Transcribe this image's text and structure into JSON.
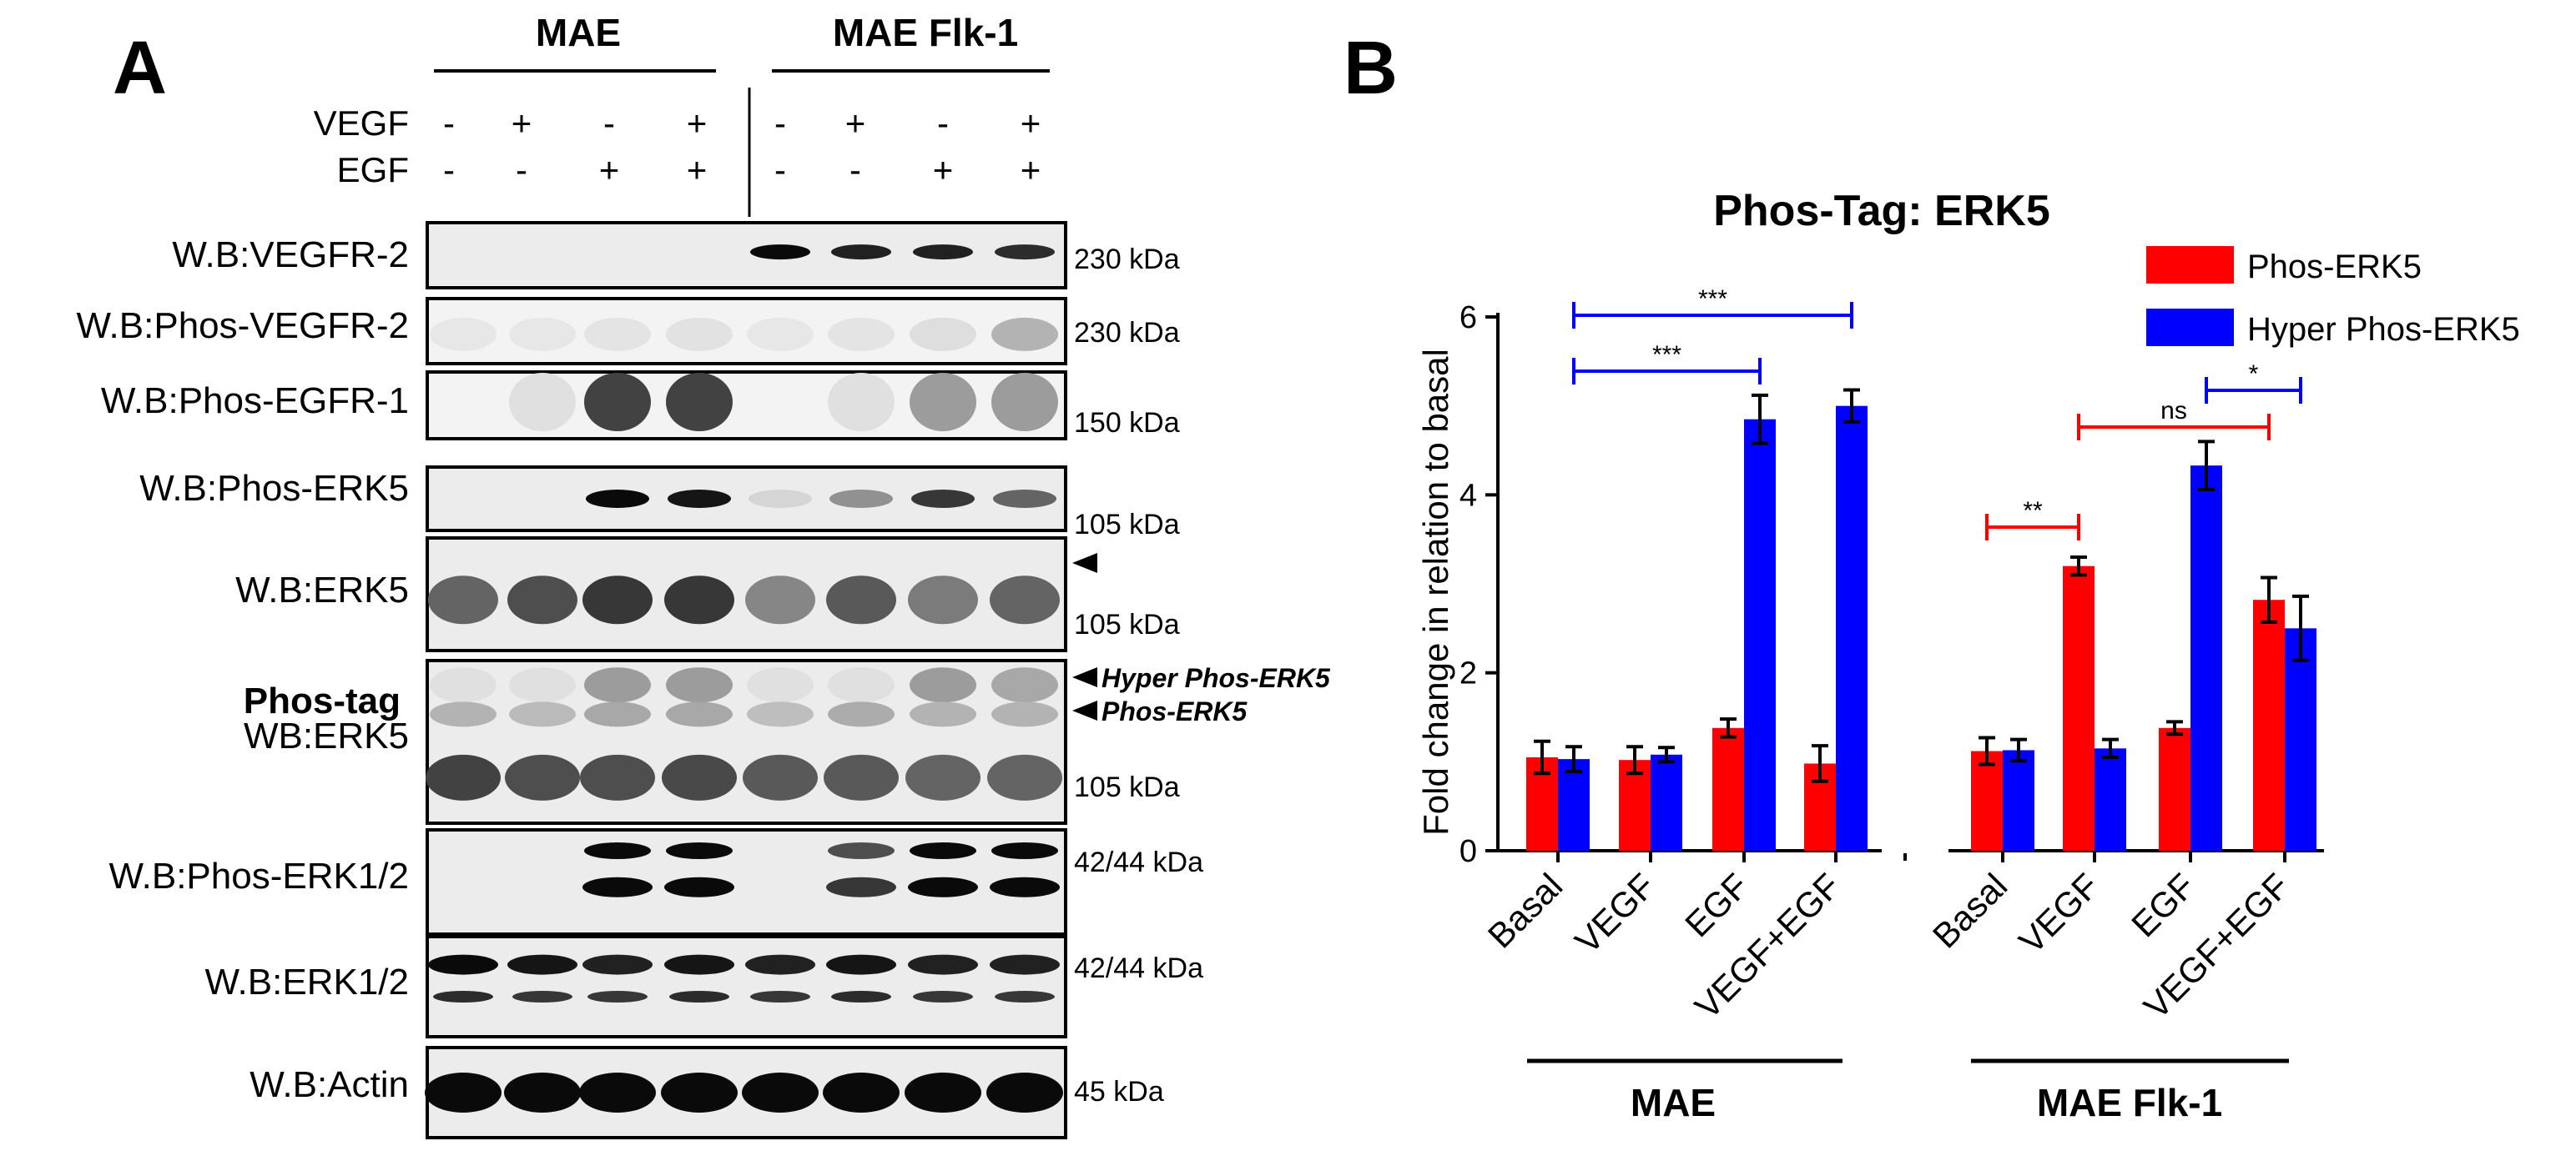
{
  "panel_a": {
    "label": "A",
    "groups": [
      "MAE",
      "MAE Flk-1"
    ],
    "treatments": [
      {
        "label": "VEGF",
        "signs": [
          "-",
          "+",
          "-",
          "+",
          "-",
          "+",
          "-",
          "+"
        ]
      },
      {
        "label": "EGF",
        "signs": [
          "-",
          "-",
          "+",
          "+",
          "-",
          "-",
          "+",
          "+"
        ]
      }
    ],
    "blots": [
      {
        "label": "W.B:VEGFR-2",
        "marker": "230 kDa"
      },
      {
        "label": "W.B:Phos-VEGFR-2",
        "marker": "230 kDa"
      },
      {
        "label": "W.B:Phos-EGFR-1",
        "marker": "150 kDa"
      },
      {
        "label": "W.B:Phos-ERK5",
        "marker": "105 kDa"
      },
      {
        "label": "W.B:ERK5",
        "marker": "105 kDa"
      },
      {
        "label_bold": "Phos-tag",
        "label": "WB:ERK5",
        "marker": "105 kDa"
      },
      {
        "label": "W.B:Phos-ERK1/2",
        "marker": "42/44 kDa"
      },
      {
        "label": "W.B:ERK1/2",
        "marker": "42/44 kDa"
      },
      {
        "label": "W.B:Actin",
        "marker": "45 kDa"
      }
    ],
    "band_annotations": [
      "Hyper Phos-ERK5",
      "Phos-ERK5"
    ]
  },
  "panel_b": {
    "label": "B",
    "groups": [
      "MAE",
      "MAE Flk-1"
    ]
  },
  "chart_data": {
    "type": "bar",
    "title": "Phos-Tag: ERK5",
    "ylabel": "Fold change in relation to basal",
    "xlabel": "",
    "ylim": [
      0,
      6
    ],
    "yticks": [
      0,
      2,
      4,
      6
    ],
    "categories": [
      "Basal",
      "VEGF",
      "EGF",
      "VEGF+EGF",
      "Basal",
      "VEGF",
      "EGF",
      "VEGF+EGF"
    ],
    "category_groups": [
      "MAE",
      "MAE",
      "MAE",
      "MAE",
      "MAE Flk-1",
      "MAE Flk-1",
      "MAE Flk-1",
      "MAE Flk-1"
    ],
    "series": [
      {
        "name": "Phos-ERK5",
        "color": "#ff0000",
        "values": [
          1.05,
          1.02,
          1.38,
          0.98,
          1.12,
          3.2,
          1.38,
          2.82
        ],
        "errors": [
          0.18,
          0.15,
          0.1,
          0.2,
          0.15,
          0.1,
          0.07,
          0.25
        ]
      },
      {
        "name": "Hyper Phos-ERK5",
        "color": "#0000ff",
        "values": [
          1.03,
          1.08,
          4.85,
          5.0,
          1.13,
          1.15,
          4.33,
          2.5
        ],
        "errors": [
          0.14,
          0.08,
          0.27,
          0.18,
          0.12,
          0.1,
          0.27,
          0.36
        ]
      }
    ],
    "significance": [
      {
        "label": "***",
        "from": 0,
        "to": 3,
        "series": "Hyper Phos-ERK5",
        "color": "#0000ff"
      },
      {
        "label": "***",
        "from": 0,
        "to": 2,
        "series": "Hyper Phos-ERK5",
        "color": "#0000ff"
      },
      {
        "label": "**",
        "from": 4,
        "to": 5,
        "series": "Phos-ERK5",
        "color": "#ff0000"
      },
      {
        "label": "ns",
        "from": 5,
        "to": 7,
        "series": "Phos-ERK5",
        "color": "#ff0000"
      },
      {
        "label": "*",
        "from": 6,
        "to": 7,
        "series": "Hyper Phos-ERK5",
        "color": "#0000ff"
      }
    ],
    "legend_position": "top-right",
    "grid": false
  }
}
